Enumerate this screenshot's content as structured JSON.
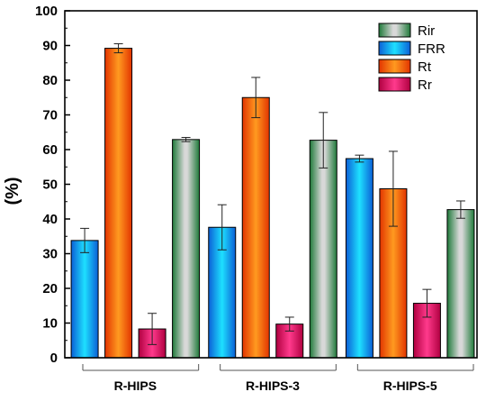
{
  "chart_data": {
    "type": "bar",
    "ylabel": "(%)",
    "xlabel": "",
    "ylim": [
      0,
      100
    ],
    "yticks": [
      0,
      10,
      20,
      30,
      40,
      50,
      60,
      70,
      80,
      90,
      100
    ],
    "categories": [
      "R-HIPS",
      "R-HIPS-3",
      "R-HIPS-5"
    ],
    "grid": false,
    "legend_position": "top-right",
    "legend_order": [
      "Rir",
      "FRR",
      "Rt",
      "Rr"
    ],
    "series": [
      {
        "name": "FRR",
        "color": "#1aa9f0",
        "values": [
          33.8,
          37.6,
          57.4
        ],
        "errors": [
          3.5,
          6.5,
          1.0
        ]
      },
      {
        "name": "Rt",
        "color": "#f25c05",
        "values": [
          89.2,
          75.0,
          48.7
        ],
        "errors": [
          1.3,
          5.8,
          10.8
        ]
      },
      {
        "name": "Rr",
        "color": "#d5125a",
        "values": [
          8.3,
          9.7,
          15.7
        ],
        "errors": [
          4.5,
          2.0,
          4.0
        ]
      },
      {
        "name": "Rir",
        "color": "#7f8f7f",
        "values": [
          62.9,
          62.7,
          42.7
        ],
        "errors": [
          0.6,
          8.0,
          2.5
        ]
      }
    ]
  }
}
